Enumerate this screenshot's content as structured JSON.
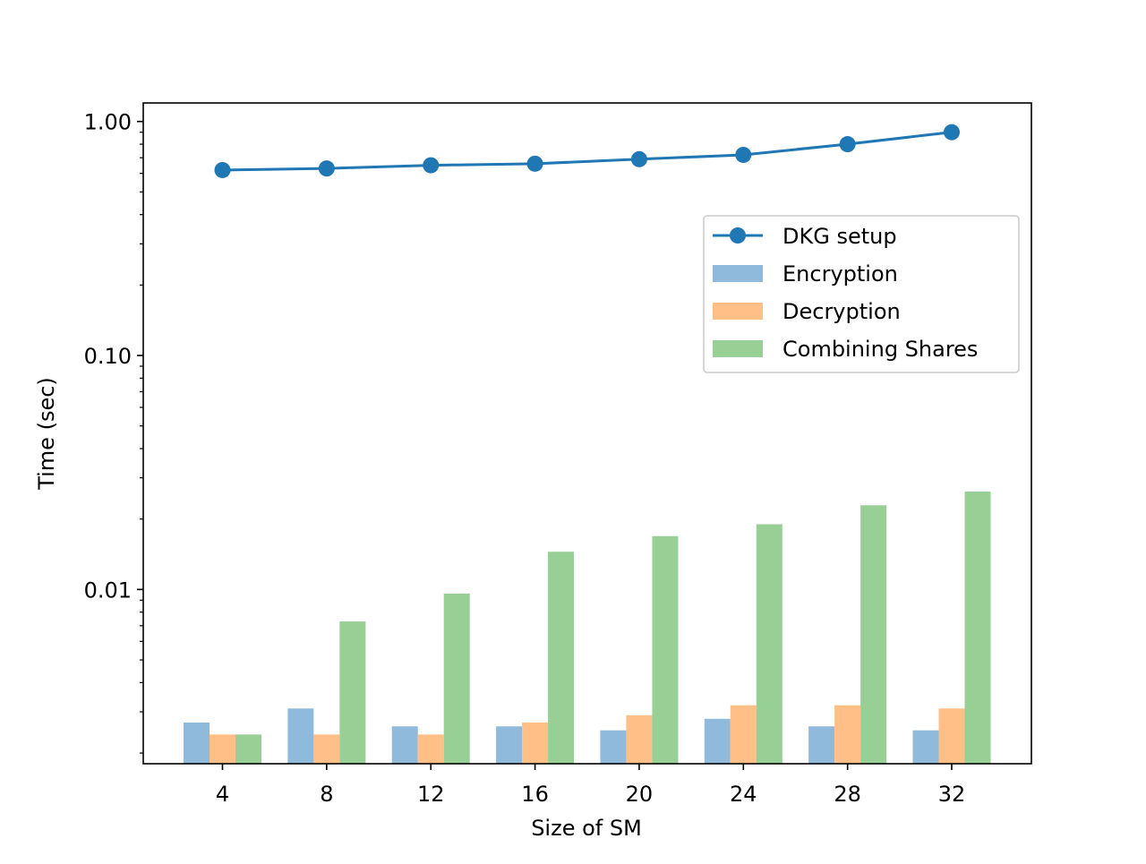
{
  "chart_data": {
    "type": "bar",
    "title": "",
    "xlabel": "Size of SM",
    "ylabel": "Time (sec)",
    "yscale": "log",
    "ylim": [
      0.0018,
      1.2
    ],
    "grid": false,
    "legend_position": "upper-right",
    "categories": [
      "4",
      "8",
      "12",
      "16",
      "20",
      "24",
      "28",
      "32"
    ],
    "y_ticks": [
      {
        "value": 0.01,
        "label": "0.01"
      },
      {
        "value": 0.1,
        "label": "0.10"
      },
      {
        "value": 1.0,
        "label": "1.00"
      }
    ],
    "series": [
      {
        "name": "Encryption",
        "type": "bar",
        "color": "#8fbadb",
        "values": [
          0.0027,
          0.0031,
          0.0026,
          0.0026,
          0.0025,
          0.0028,
          0.0026,
          0.0025
        ]
      },
      {
        "name": "Decryption",
        "type": "bar",
        "color": "#ffbf86",
        "values": [
          0.0024,
          0.0024,
          0.0024,
          0.0027,
          0.0029,
          0.0032,
          0.0032,
          0.0031
        ]
      },
      {
        "name": "Combining Shares",
        "type": "bar",
        "color": "#97cf94",
        "values": [
          0.0024,
          0.0073,
          0.0096,
          0.0145,
          0.0169,
          0.019,
          0.0229,
          0.0262
        ]
      },
      {
        "name": "DKG setup",
        "type": "line",
        "color": "#1f77b4",
        "marker": "circle",
        "values": [
          0.62,
          0.63,
          0.65,
          0.66,
          0.69,
          0.72,
          0.8,
          0.9
        ]
      }
    ],
    "legend_order": [
      "DKG setup",
      "Encryption",
      "Decryption",
      "Combining Shares"
    ]
  }
}
